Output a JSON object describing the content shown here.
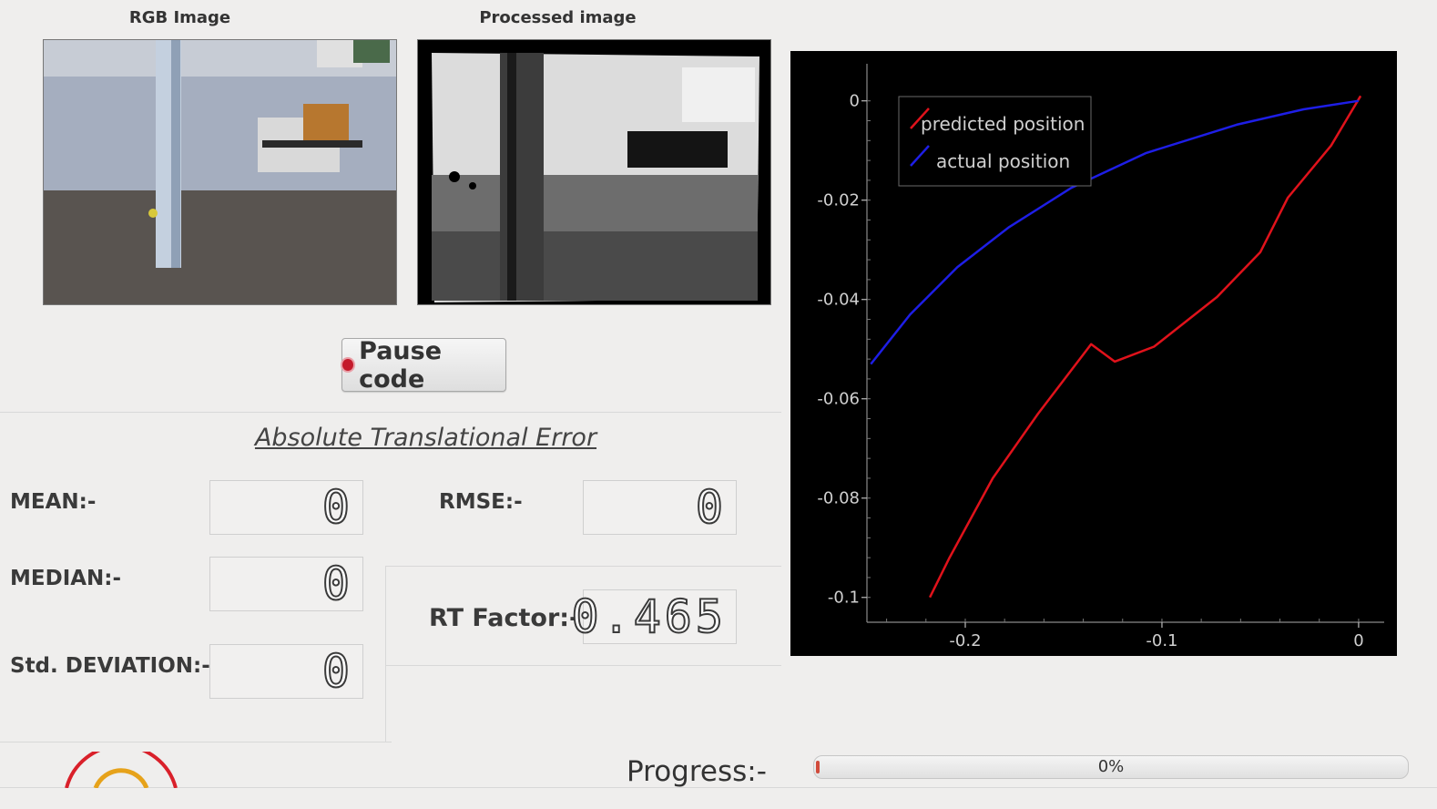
{
  "panels": {
    "rgb_title": "RGB Image",
    "processed_title": "Processed image"
  },
  "controls": {
    "pause_label": "Pause code"
  },
  "metrics": {
    "section_title": "Absolute Translational Error",
    "mean_label": "MEAN:-",
    "mean_value": "0",
    "median_label": "MEDIAN:-",
    "median_value": "0",
    "std_label": "Std. DEVIATION:-",
    "std_value": "0",
    "rmse_label": "RMSE:-",
    "rmse_value": "0",
    "rt_label": "RT Factor:-",
    "rt_value": "0.465"
  },
  "progress": {
    "label": "Progress:-",
    "value_text": "0%",
    "fraction": 0.003,
    "fill_color": "#d14b3b"
  },
  "chart_data": {
    "type": "line",
    "title": "",
    "xlabel": "",
    "ylabel": "",
    "xlim": [
      -0.25,
      0.013
    ],
    "ylim": [
      -0.105,
      0.006
    ],
    "xticks": [
      -0.2,
      -0.1,
      0
    ],
    "xtick_labels": [
      "-0.2",
      "-0.1",
      "0"
    ],
    "yticks": [
      0,
      -0.02,
      -0.04,
      -0.06,
      -0.08,
      -0.1
    ],
    "ytick_labels": [
      "0",
      "-0.02",
      "-0.04",
      "-0.06",
      "-0.08",
      "-0.1"
    ],
    "legend_position": "top-left",
    "grid": false,
    "background": "#000000",
    "series": [
      {
        "name": "predicted position",
        "color": "#e0121b",
        "x": [
          -0.218,
          -0.208,
          -0.186,
          -0.163,
          -0.136,
          -0.124,
          -0.104,
          -0.072,
          -0.05,
          -0.036,
          -0.014,
          0.001
        ],
        "y": [
          -0.1,
          -0.092,
          -0.076,
          -0.063,
          -0.049,
          -0.0525,
          -0.0495,
          -0.0395,
          -0.0305,
          -0.0195,
          -0.009,
          0.001
        ]
      },
      {
        "name": "actual position",
        "color": "#1e1ee6",
        "x": [
          -0.248,
          -0.228,
          -0.204,
          -0.178,
          -0.146,
          -0.108,
          -0.062,
          -0.028,
          0.0
        ],
        "y": [
          -0.053,
          -0.043,
          -0.0335,
          -0.0255,
          -0.0175,
          -0.0105,
          -0.0048,
          -0.0017,
          0.0
        ]
      }
    ]
  }
}
